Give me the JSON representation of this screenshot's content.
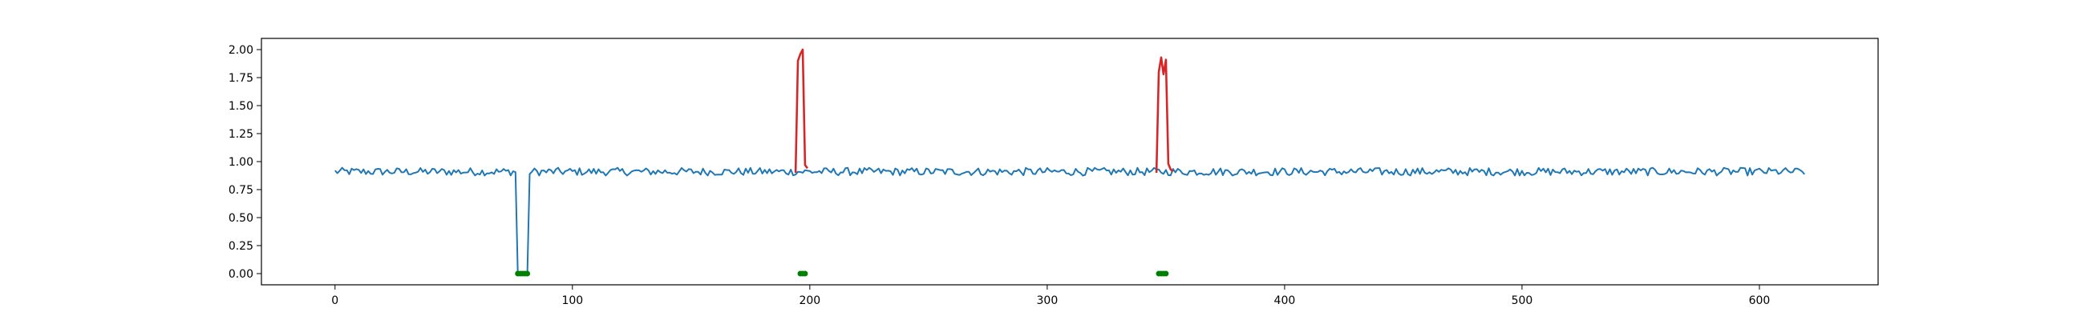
{
  "chart_data": {
    "type": "line",
    "title": "",
    "xlabel": "",
    "ylabel": "",
    "xlim": [
      -31,
      650
    ],
    "ylim": [
      -0.1,
      2.1
    ],
    "xticks": [
      0,
      100,
      200,
      300,
      400,
      500,
      600
    ],
    "yticks": [
      0.0,
      0.25,
      0.5,
      0.75,
      1.0,
      1.25,
      1.5,
      1.75,
      2.0
    ],
    "xtick_labels": [
      "0",
      "100",
      "200",
      "300",
      "400",
      "500",
      "600"
    ],
    "ytick_labels": [
      "0.00",
      "0.25",
      "0.50",
      "0.75",
      "1.00",
      "1.25",
      "1.50",
      "1.75",
      "2.00"
    ],
    "grid": false,
    "series": [
      {
        "role": "signal",
        "color": "#1f77b4",
        "baseline": 0.91,
        "noise": 0.035,
        "x_start": 0,
        "x_end": 619,
        "dropout": {
          "x_start": 77,
          "x_end": 81,
          "y": 0.0
        }
      },
      {
        "role": "anomaly",
        "color": "#d62728",
        "segments": [
          {
            "x": [
              194,
              195,
              196,
              197,
              198,
              199
            ],
            "y": [
              0.9,
              1.9,
              1.96,
              2.0,
              0.97,
              0.94
            ]
          },
          {
            "x": [
              346,
              347,
              348,
              349,
              350,
              351,
              352,
              353
            ],
            "y": [
              0.9,
              1.8,
              1.93,
              1.78,
              1.91,
              0.98,
              0.93,
              0.91
            ]
          }
        ]
      },
      {
        "role": "marker",
        "color": "#008000",
        "points": [
          {
            "x": 77,
            "y": 0.0
          },
          {
            "x": 78,
            "y": 0.0
          },
          {
            "x": 79,
            "y": 0.0
          },
          {
            "x": 80,
            "y": 0.0
          },
          {
            "x": 81,
            "y": 0.0
          },
          {
            "x": 196,
            "y": 0.0
          },
          {
            "x": 197,
            "y": 0.0
          },
          {
            "x": 198,
            "y": 0.0
          },
          {
            "x": 347,
            "y": 0.0
          },
          {
            "x": 348,
            "y": 0.0
          },
          {
            "x": 349,
            "y": 0.0
          },
          {
            "x": 350,
            "y": 0.0
          }
        ]
      }
    ]
  }
}
